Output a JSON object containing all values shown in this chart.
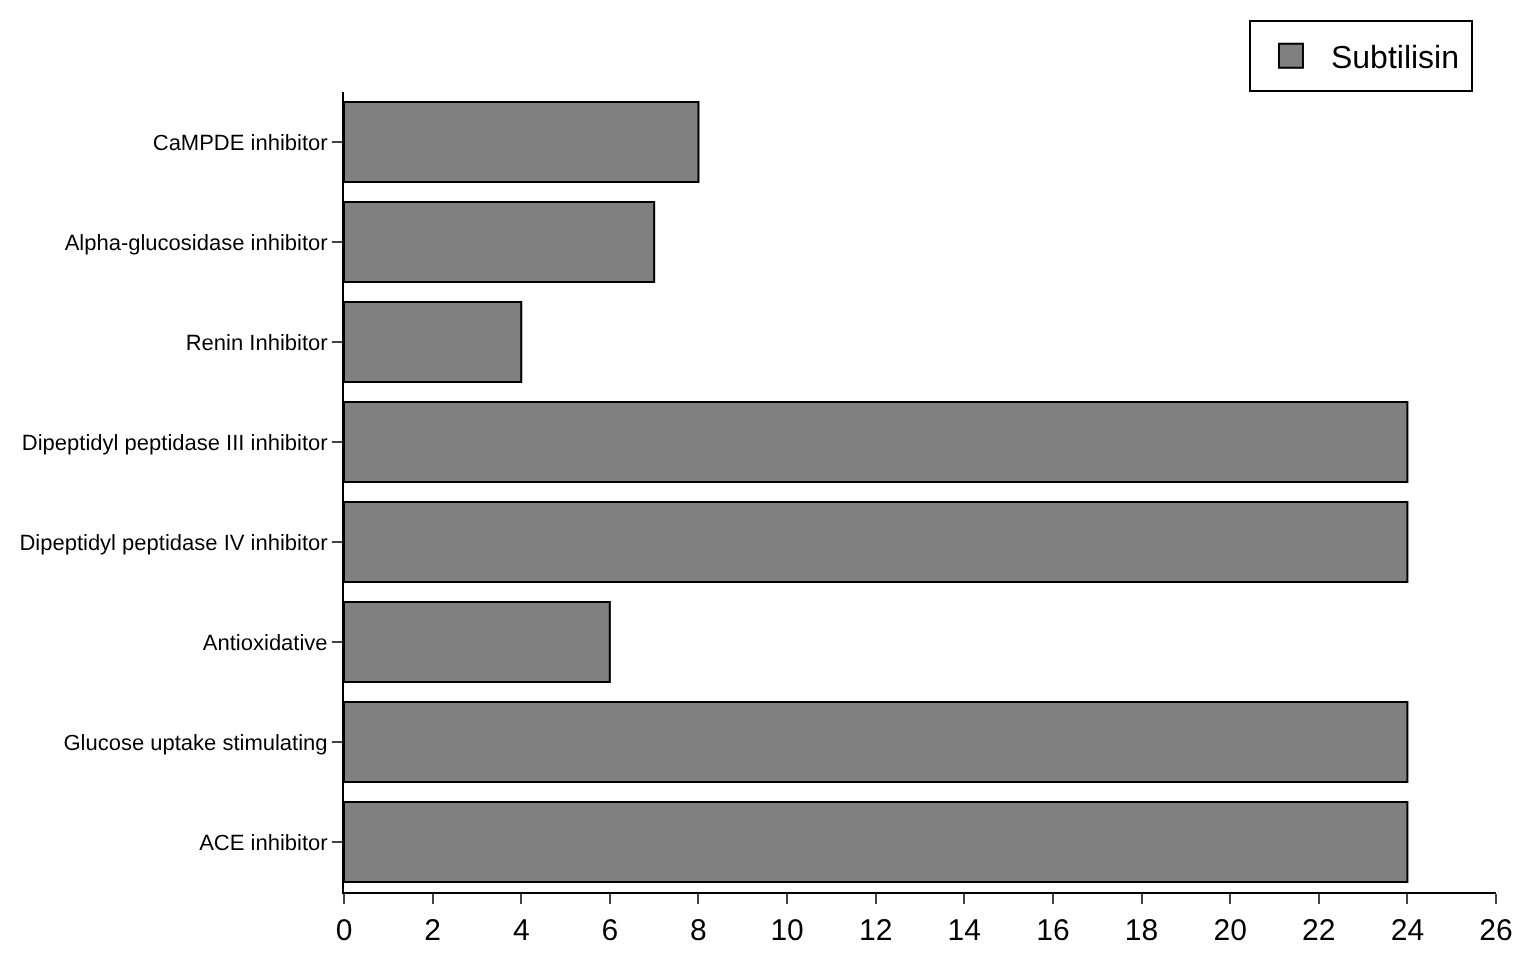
{
  "chart_data": {
    "type": "bar",
    "orientation": "horizontal",
    "categories": [
      "CaMPDE inhibitor",
      "Alpha-glucosidase inhibitor",
      "Renin Inhibitor",
      "Dipeptidyl peptidase III inhibitor",
      "Dipeptidyl peptidase IV inhibitor",
      "Antioxidative",
      "Glucose uptake stimulating",
      "ACE inhibitor"
    ],
    "series": [
      {
        "name": "Subtilisin",
        "color": "#808080",
        "values": [
          8,
          7,
          4,
          24,
          24,
          6,
          24,
          24
        ]
      }
    ],
    "xlim": [
      0,
      26
    ],
    "xticks": [
      0,
      2,
      4,
      6,
      8,
      10,
      12,
      14,
      16,
      18,
      20,
      22,
      24,
      26
    ],
    "legend": "top right"
  }
}
